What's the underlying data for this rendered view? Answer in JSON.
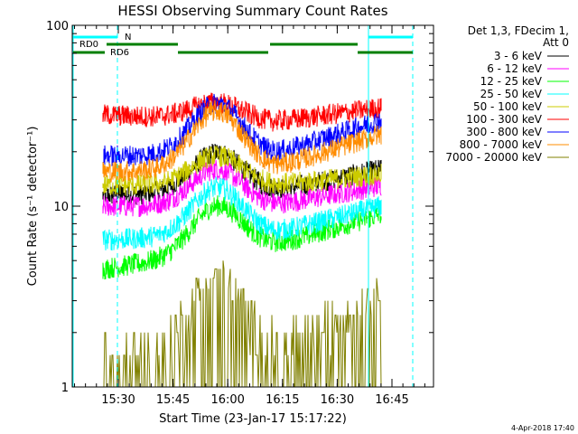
{
  "chart_data": {
    "type": "line",
    "title": "HESSI Observing Summary Count Rates",
    "xlabel": "Start Time (23-Jan-17 15:17:22)",
    "ylabel": "Count Rate (s⁻¹ detector⁻¹)",
    "y_scale": "log",
    "ylim": [
      1,
      100
    ],
    "y_tick_labels": [
      "1",
      "10",
      "100"
    ],
    "x_tick_labels": [
      "15:30",
      "15:45",
      "16:00",
      "16:15",
      "16:30",
      "16:45"
    ],
    "legend_header": [
      "Det 1,3, FDecim 1,",
      "Att 0"
    ],
    "legend_position": "right",
    "footer": "4-Apr-2018 17:40",
    "flags": [
      {
        "label": "RD0",
        "color": "#00ffff"
      },
      {
        "label": "RD6",
        "color": "#007f00"
      }
    ],
    "markers": [
      {
        "label": "N"
      }
    ],
    "series": [
      {
        "name": "3 - 6 keV",
        "color": "#000000",
        "levels": {
          "start": 11.5,
          "peak": 20,
          "mid": 12,
          "end": 16
        }
      },
      {
        "name": "6 - 12 keV",
        "color": "#ff00ff",
        "levels": {
          "start": 10,
          "peak": 16,
          "mid": 10,
          "end": 13
        }
      },
      {
        "name": "12 - 25 keV",
        "color": "#00ff00",
        "levels": {
          "start": 4.5,
          "peak": 11,
          "mid": 6,
          "end": 9
        }
      },
      {
        "name": "25 - 50 keV",
        "color": "#00ffff",
        "levels": {
          "start": 6.5,
          "peak": 13,
          "mid": 7,
          "end": 10
        }
      },
      {
        "name": "50 - 100 keV",
        "color": "#cccc00",
        "levels": {
          "start": 13,
          "peak": 19,
          "mid": 13,
          "end": 15
        }
      },
      {
        "name": "100 - 300 keV",
        "color": "#ff0000",
        "levels": {
          "start": 32,
          "peak": 40,
          "mid": 29,
          "end": 35
        }
      },
      {
        "name": "300 - 800 keV",
        "color": "#0000ff",
        "levels": {
          "start": 19,
          "peak": 37,
          "mid": 19,
          "end": 30
        }
      },
      {
        "name": "800 - 7000 keV",
        "color": "#ff8c00",
        "levels": {
          "start": 15.5,
          "peak": 34,
          "mid": 16,
          "end": 25
        }
      },
      {
        "name": "7000 - 20000 keV",
        "color": "#808000",
        "levels": {
          "start": 1.4,
          "peak": 4.5,
          "mid": 1.5,
          "end": 3.5
        }
      }
    ]
  }
}
